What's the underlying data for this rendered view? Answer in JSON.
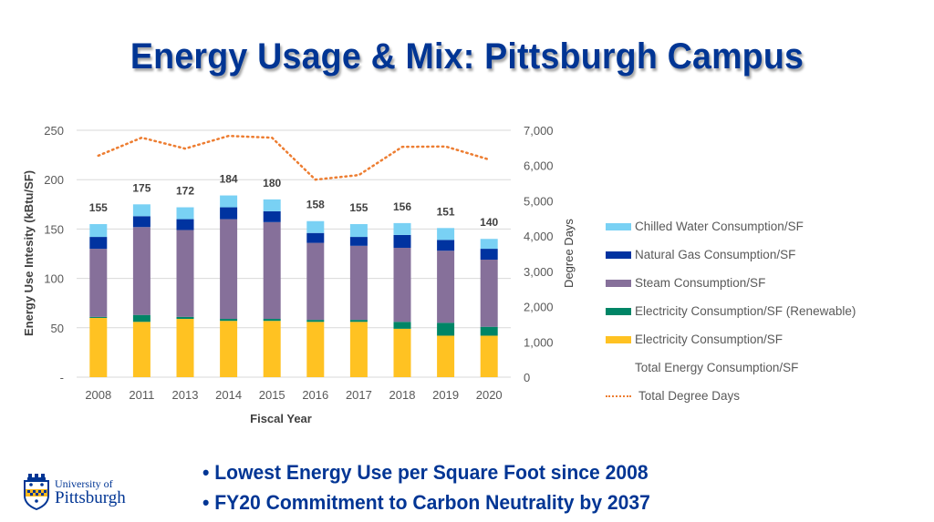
{
  "slide": {
    "title": "Energy Usage & Mix: Pittsburgh Campus",
    "bullets": [
      "• Lowest Energy Use per Square Foot since 2008",
      "• FY20 Commitment to Carbon Neutrality by 2037"
    ],
    "logo": {
      "line1": "University of",
      "line2": "Pittsburgh",
      "icon": "university-shield-icon"
    }
  },
  "chart_data": {
    "type": "bar",
    "stacked": true,
    "title": "",
    "xlabel": "Fiscal Year",
    "ylabel": "Energy Use Intesity (kBtu/SF)",
    "y2label": "Degree Days",
    "categories": [
      "2008",
      "2011",
      "2013",
      "2014",
      "2015",
      "2016",
      "2017",
      "2018",
      "2019",
      "2020"
    ],
    "ylim": [
      0,
      250
    ],
    "yticks": [
      0,
      50,
      100,
      150,
      200,
      250
    ],
    "ytick_labels": [
      "-",
      "50",
      "100",
      "150",
      "200",
      "250"
    ],
    "y2lim": [
      0,
      7000
    ],
    "y2ticks": [
      0,
      1000,
      2000,
      3000,
      4000,
      5000,
      6000,
      7000
    ],
    "y2tick_labels": [
      "0",
      "1,000",
      "2,000",
      "3,000",
      "4,000",
      "5,000",
      "6,000",
      "7,000"
    ],
    "grid": true,
    "legend_position": "right",
    "series": [
      {
        "name": "Electricity Consumption/SF",
        "color": "#FFC222",
        "values": [
          60,
          56,
          59,
          57,
          57,
          56,
          56,
          49,
          42,
          42
        ]
      },
      {
        "name": "Electricity Consumption/SF (Renewable)",
        "color": "#008566",
        "values": [
          1,
          7,
          2,
          2,
          2,
          2,
          2,
          7,
          13,
          9
        ]
      },
      {
        "name": "Steam Consumption/SF",
        "color": "#86709A",
        "values": [
          69,
          89,
          88,
          101,
          98,
          78,
          75,
          75,
          73,
          68
        ]
      },
      {
        "name": "Natural Gas Consumption/SF",
        "color": "#0033A0",
        "values": [
          12,
          11,
          11,
          12,
          11,
          10,
          9,
          13,
          11,
          11
        ]
      },
      {
        "name": "Chilled Water Consumption/SF",
        "color": "#79D1F4",
        "values": [
          13,
          12,
          12,
          12,
          12,
          12,
          13,
          12,
          12,
          10
        ]
      }
    ],
    "totals": {
      "name": "Total Energy Consumption/SF",
      "values": [
        155,
        175,
        172,
        184,
        180,
        158,
        155,
        156,
        151,
        140
      ]
    },
    "line": {
      "name": "Total Degree Days",
      "color": "#ED7D31",
      "axis": "right",
      "style": "dotted",
      "values": [
        6280,
        6790,
        6480,
        6840,
        6790,
        5600,
        5730,
        6530,
        6540,
        6170
      ]
    },
    "legend_order": [
      "Chilled Water Consumption/SF",
      "Natural Gas Consumption/SF",
      "Steam Consumption/SF",
      "Electricity Consumption/SF (Renewable)",
      "Electricity Consumption/SF",
      "Total Energy Consumption/SF",
      "Total Degree Days"
    ]
  }
}
